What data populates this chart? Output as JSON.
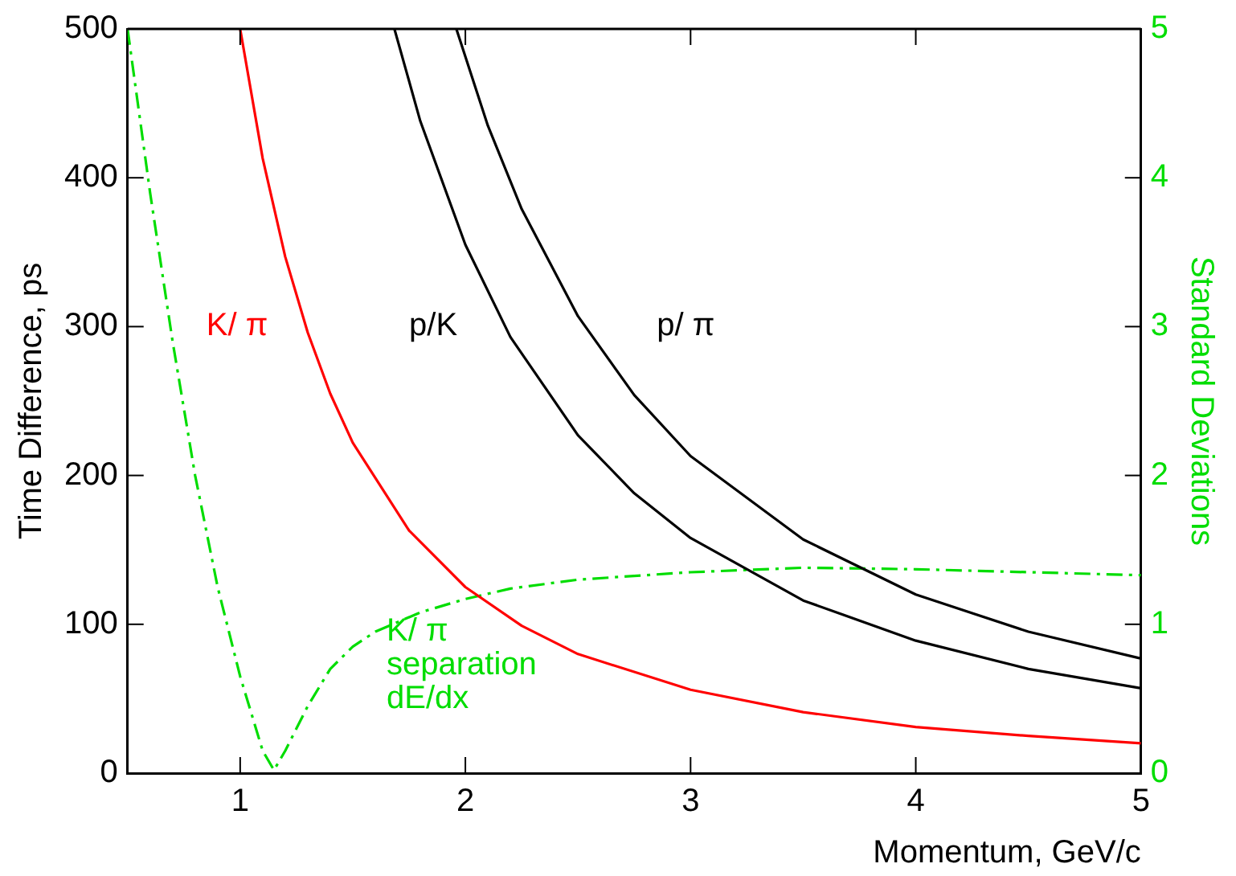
{
  "chart_data": {
    "type": "line",
    "xlabel": "Momentum, GeV/c",
    "ylabel": "Time Difference, ps",
    "y2label": "Standard Deviations",
    "xlim": [
      0.5,
      5
    ],
    "xticks": [
      1,
      2,
      3,
      4,
      5
    ],
    "ylim": [
      0,
      500
    ],
    "yticks": [
      0,
      100,
      200,
      300,
      400,
      500
    ],
    "y2lim": [
      0,
      5
    ],
    "y2ticks": [
      0,
      1,
      2,
      3,
      4,
      5
    ],
    "grid": false,
    "legend": false,
    "marker": "none",
    "series": [
      {
        "name": "K/ π",
        "color": "#ff0000",
        "x": [
          1,
          1.1,
          1.2,
          1.3,
          1.4,
          1.5,
          1.75,
          2,
          2.25,
          2.5,
          3,
          3.5,
          4,
          4.5,
          5
        ],
        "values": [
          500,
          413,
          347,
          296,
          255,
          222,
          163,
          125,
          99,
          80,
          56,
          41,
          31,
          25,
          20
        ]
      },
      {
        "name": "p/K",
        "color": "#000000",
        "x": [
          1.685,
          1.8,
          2,
          2.2,
          2.5,
          2.75,
          3,
          3.5,
          4,
          4.5,
          5
        ],
        "values": [
          500,
          438,
          355,
          293,
          227,
          188,
          158,
          116,
          89,
          70,
          57
        ]
      },
      {
        "name": "p/ π",
        "color": "#000000",
        "x": [
          1.96,
          2.1,
          2.25,
          2.5,
          2.75,
          3,
          3.5,
          4,
          4.5,
          5
        ],
        "values": [
          500,
          435,
          379,
          307,
          254,
          213,
          157,
          120,
          95,
          77
        ]
      },
      {
        "name": "K/ π\nseparation\ndE/dx",
        "color": "#00dd00",
        "axis": "y2",
        "line_style": "dashed",
        "x": [
          0.5,
          0.6,
          0.7,
          0.8,
          0.9,
          1.0,
          1.1,
          1.15,
          1.2,
          1.3,
          1.4,
          1.5,
          1.6,
          1.8,
          2.0,
          2.2,
          2.5,
          3,
          3.5,
          4,
          4.5,
          5
        ],
        "values": [
          5,
          3.9,
          2.9,
          2.0,
          1.25,
          0.65,
          0.15,
          0.02,
          0.15,
          0.45,
          0.7,
          0.85,
          0.95,
          1.08,
          1.17,
          1.24,
          1.3,
          1.35,
          1.38,
          1.37,
          1.35,
          1.33
        ]
      }
    ]
  }
}
